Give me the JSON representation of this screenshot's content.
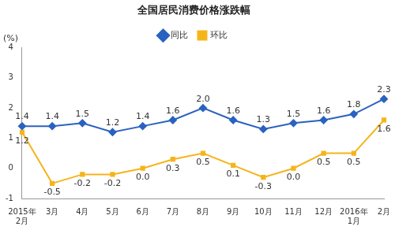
{
  "chart_data": {
    "type": "line",
    "title": "全国居民消费价格涨跌幅",
    "y_unit_label": "(%)",
    "categories": [
      "2015年\n2月",
      "3月",
      "4月",
      "5月",
      "6月",
      "7月",
      "8月",
      "9月",
      "10月",
      "11月",
      "12月",
      "2016年\n1月",
      "2月"
    ],
    "series": [
      {
        "name": "同比",
        "color": "#2a62c0",
        "marker": "diamond",
        "line_style": "solid",
        "values": [
          1.4,
          1.4,
          1.5,
          1.2,
          1.4,
          1.6,
          2.0,
          1.6,
          1.3,
          1.5,
          1.6,
          1.8,
          2.3
        ],
        "value_labels": [
          "1.4",
          "1.4",
          "1.5",
          "1.2",
          "1.4",
          "1.6",
          "2.0",
          "1.6",
          "1.3",
          "1.5",
          "1.6",
          "1.8",
          "2.3"
        ]
      },
      {
        "name": "环比",
        "color": "#f5b41a",
        "marker": "square",
        "line_style": "solid",
        "values": [
          1.2,
          -0.5,
          -0.2,
          -0.2,
          0.0,
          0.3,
          0.5,
          0.1,
          -0.3,
          0.0,
          0.5,
          0.5,
          1.6
        ],
        "value_labels": [
          "1.2",
          "-0.5",
          "-0.2",
          "-0.2",
          "0.0",
          "0.3",
          "0.5",
          "0.1",
          "-0.3",
          "0.0",
          "0.5",
          "0.5",
          "1.6"
        ]
      }
    ],
    "ylim": [
      -1,
      4
    ],
    "yticks": [
      -1,
      0,
      1,
      2,
      3,
      4
    ],
    "grid": false,
    "legend": "top",
    "data_labels": true
  }
}
